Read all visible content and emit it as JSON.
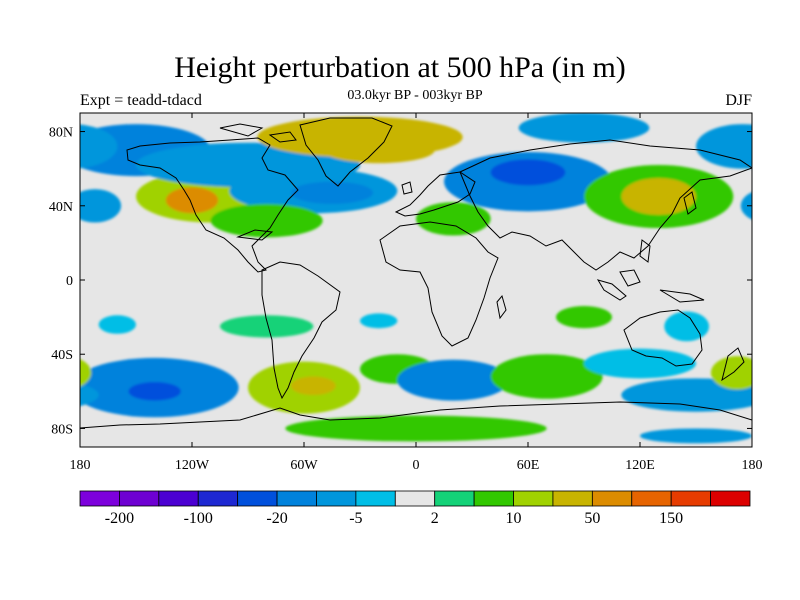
{
  "header": {
    "title": "Height perturbation at 500 hPa (in m)",
    "left_label": "Expt = teadd-tdacd",
    "center_label": "03.0kyr BP - 003kyr BP",
    "right_label": "DJF"
  },
  "map": {
    "projection": "cylindrical-equidistant",
    "lon_range": [
      -180,
      180
    ],
    "lat_range": [
      -90,
      90
    ],
    "background_color": "#e6e6e6",
    "x_ticks": [
      {
        "value": -180,
        "label": "180"
      },
      {
        "value": -120,
        "label": "120W"
      },
      {
        "value": -60,
        "label": "60W"
      },
      {
        "value": 0,
        "label": "0"
      },
      {
        "value": 60,
        "label": "60E"
      },
      {
        "value": 120,
        "label": "120E"
      },
      {
        "value": 180,
        "label": "180"
      }
    ],
    "y_ticks": [
      {
        "value": 80,
        "label": "80N"
      },
      {
        "value": 40,
        "label": "40N"
      },
      {
        "value": 0,
        "label": "0"
      },
      {
        "value": -40,
        "label": "40S"
      },
      {
        "value": -80,
        "label": "80S"
      }
    ],
    "anomalies": [
      {
        "lon": -150,
        "lat": 70,
        "rlon": 40,
        "rlat": 14,
        "value": -20
      },
      {
        "lon": -110,
        "lat": 45,
        "rlon": 40,
        "rlat": 14,
        "value": 15
      },
      {
        "lon": -120,
        "lat": 43,
        "rlon": 14,
        "rlat": 7,
        "value": 50
      },
      {
        "lon": -90,
        "lat": 62,
        "rlon": 60,
        "rlat": 12,
        "value": -10
      },
      {
        "lon": -55,
        "lat": 48,
        "rlon": 45,
        "rlat": 12,
        "value": -10
      },
      {
        "lon": -45,
        "lat": 47,
        "rlon": 22,
        "rlat": 6,
        "value": -20
      },
      {
        "lon": -80,
        "lat": 32,
        "rlon": 30,
        "rlat": 9,
        "value": 8
      },
      {
        "lon": -30,
        "lat": 77,
        "rlon": 55,
        "rlat": 11,
        "value": 20
      },
      {
        "lon": -20,
        "lat": 70,
        "rlon": 30,
        "rlat": 7,
        "value": 35
      },
      {
        "lon": 60,
        "lat": 53,
        "rlon": 45,
        "rlat": 16,
        "value": -15
      },
      {
        "lon": 60,
        "lat": 58,
        "rlon": 20,
        "rlat": 7,
        "value": -25
      },
      {
        "lon": 20,
        "lat": 33,
        "rlon": 20,
        "rlat": 9,
        "value": 6
      },
      {
        "lon": 90,
        "lat": 82,
        "rlon": 35,
        "rlat": 8,
        "value": -10
      },
      {
        "lon": 130,
        "lat": 45,
        "rlon": 40,
        "rlat": 17,
        "value": 8
      },
      {
        "lon": 130,
        "lat": 45,
        "rlon": 20,
        "rlat": 10,
        "value": 20
      },
      {
        "lon": 175,
        "lat": 72,
        "rlon": 25,
        "rlat": 12,
        "value": -10
      },
      {
        "lon": -172,
        "lat": 40,
        "rlon": 14,
        "rlat": 9,
        "value": -6
      },
      {
        "lon": -160,
        "lat": -24,
        "rlon": 10,
        "rlat": 5,
        "value": -5
      },
      {
        "lon": -80,
        "lat": -25,
        "rlon": 25,
        "rlat": 6,
        "value": 4
      },
      {
        "lon": -20,
        "lat": -22,
        "rlon": 10,
        "rlat": 4,
        "value": -4
      },
      {
        "lon": 90,
        "lat": -20,
        "rlon": 15,
        "rlat": 6,
        "value": 5
      },
      {
        "lon": 145,
        "lat": -25,
        "rlon": 12,
        "rlat": 8,
        "value": -5
      },
      {
        "lon": -140,
        "lat": -58,
        "rlon": 45,
        "rlat": 16,
        "value": -20
      },
      {
        "lon": -140,
        "lat": -60,
        "rlon": 14,
        "rlat": 5,
        "value": -40
      },
      {
        "lon": -60,
        "lat": -58,
        "rlon": 30,
        "rlat": 14,
        "value": 15
      },
      {
        "lon": -55,
        "lat": -57,
        "rlon": 12,
        "rlat": 5,
        "value": 30
      },
      {
        "lon": -10,
        "lat": -48,
        "rlon": 20,
        "rlat": 8,
        "value": 6
      },
      {
        "lon": 20,
        "lat": -54,
        "rlon": 30,
        "rlat": 11,
        "value": -15
      },
      {
        "lon": 70,
        "lat": -52,
        "rlon": 30,
        "rlat": 12,
        "value": 8
      },
      {
        "lon": 120,
        "lat": -45,
        "rlon": 30,
        "rlat": 8,
        "value": -5
      },
      {
        "lon": 150,
        "lat": -62,
        "rlon": 40,
        "rlat": 9,
        "value": -10
      },
      {
        "lon": 172,
        "lat": -50,
        "rlon": 14,
        "rlat": 9,
        "value": 15
      },
      {
        "lon": 0,
        "lat": -80,
        "rlon": 70,
        "rlat": 7,
        "value": 6
      },
      {
        "lon": 150,
        "lat": -84,
        "rlon": 30,
        "rlat": 4,
        "value": -10
      },
      {
        "lon": 0,
        "lat": -5,
        "rlon": 6,
        "rlat": 3,
        "value": 0
      }
    ]
  },
  "colorbar": {
    "colors": [
      "#7d00dc",
      "#6e00d2",
      "#4b00d2",
      "#1e28d2",
      "#0050dc",
      "#0082dc",
      "#0096dc",
      "#00bee6",
      "#e6e6e6",
      "#14d278",
      "#32c800",
      "#a0d200",
      "#c8b400",
      "#dc8c00",
      "#e66400",
      "#e63c00",
      "#dc0000"
    ],
    "labels": [
      {
        "after_box": 1,
        "text": "-200"
      },
      {
        "after_box": 3,
        "text": "-100"
      },
      {
        "after_box": 5,
        "text": "-20"
      },
      {
        "after_box": 7,
        "text": "-5"
      },
      {
        "after_box": 9,
        "text": "2"
      },
      {
        "after_box": 11,
        "text": "10"
      },
      {
        "after_box": 13,
        "text": "50"
      },
      {
        "after_box": 15,
        "text": "150"
      }
    ],
    "levels": [
      -200,
      -150,
      -100,
      -50,
      -20,
      -10,
      -5,
      -2,
      2,
      5,
      10,
      20,
      50,
      100,
      150,
      200
    ]
  }
}
